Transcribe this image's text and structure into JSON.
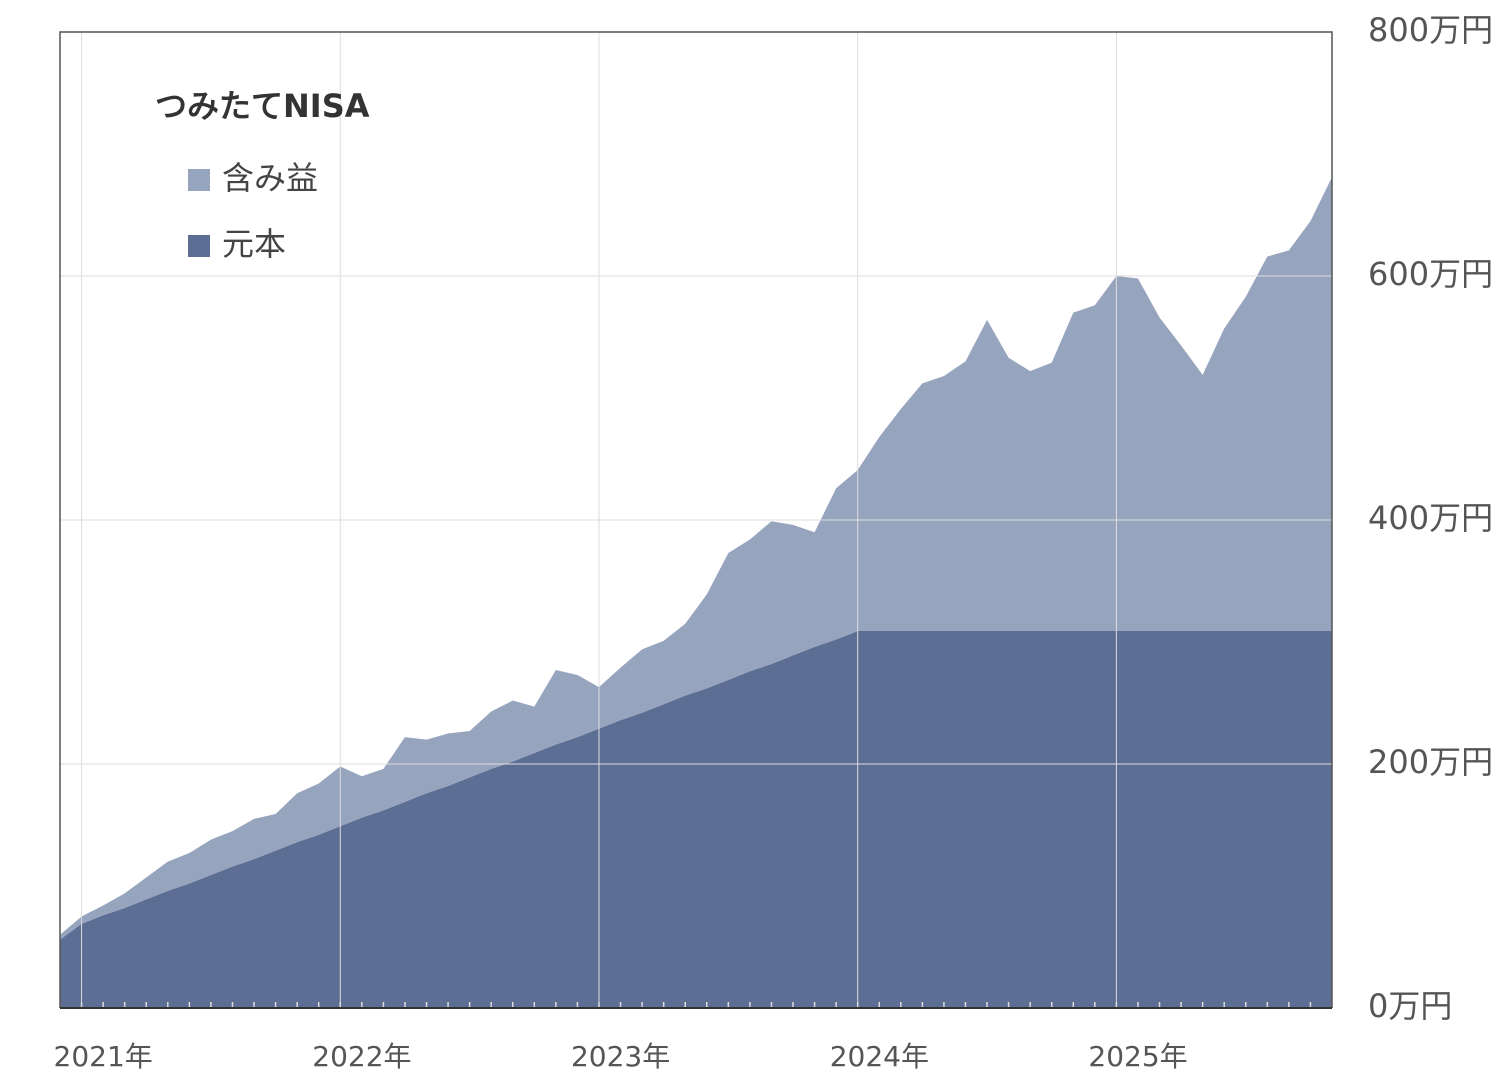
{
  "chart_data": {
    "type": "area",
    "stacked": true,
    "title": "つみたてNISA",
    "categories": [
      null,
      "2021年",
      null,
      null,
      null,
      null,
      null,
      null,
      null,
      null,
      null,
      null,
      null,
      "2022年",
      null,
      null,
      null,
      null,
      null,
      null,
      null,
      null,
      null,
      null,
      null,
      "2023年",
      null,
      null,
      null,
      null,
      null,
      null,
      null,
      null,
      null,
      null,
      null,
      "2024年",
      null,
      null,
      null,
      null,
      null,
      null,
      null,
      null,
      null,
      null,
      null,
      "2025年",
      null,
      null,
      null,
      null,
      null,
      null,
      null,
      null,
      null,
      null
    ],
    "series": [
      {
        "name": "元本",
        "color": "#5d6e94",
        "values": [
          56,
          69,
          76,
          82,
          89,
          96,
          102,
          109,
          116,
          122,
          129,
          136,
          142,
          149,
          156,
          162,
          169,
          176,
          182,
          189,
          196,
          202,
          209,
          216,
          222,
          229,
          236,
          242,
          249,
          256,
          262,
          269,
          276,
          282,
          289,
          296,
          302,
          309,
          309,
          309,
          309,
          309,
          309,
          309,
          309,
          309,
          309,
          309,
          309,
          309,
          309,
          309,
          309,
          309,
          309,
          309,
          309,
          309,
          309,
          309
        ]
      },
      {
        "name": "含み益",
        "color": "#97a4be",
        "values": [
          4,
          6,
          8,
          12,
          18,
          24,
          25,
          29,
          29,
          33,
          30,
          40,
          42,
          49,
          34,
          34,
          53,
          44,
          43,
          38,
          47,
          50,
          38,
          61,
          51,
          34,
          43,
          52,
          52,
          59,
          77,
          104,
          108,
          117,
          107,
          94,
          124,
          132,
          159,
          182,
          203,
          209,
          221,
          255,
          224,
          213,
          220,
          261,
          267,
          291,
          289,
          257,
          234,
          210,
          248,
          274,
          307,
          312,
          336,
          372
        ]
      }
    ],
    "ylim": [
      0,
      800
    ],
    "yticks": [
      {
        "value": 0,
        "label": "0万円"
      },
      {
        "value": 200,
        "label": "200万円"
      },
      {
        "value": 400,
        "label": "400万円"
      },
      {
        "value": 600,
        "label": "600万円"
      },
      {
        "value": 800,
        "label": "800万円"
      }
    ],
    "grid": true,
    "legend": "upper left"
  }
}
